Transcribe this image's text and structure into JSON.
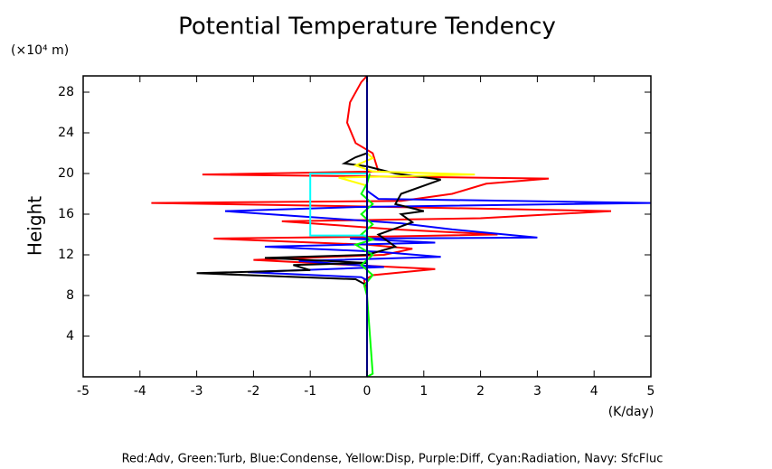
{
  "chart_data": {
    "type": "profile",
    "title": "Potential Temperature Tendency",
    "y_unit": "(×10⁴ m)",
    "ylabel": "Height",
    "xlabel": "(K/day)",
    "legend_text": "Red:Adv, Green:Turb, Blue:Condense, Yellow:Disp, Purple:Diff, Cyan:Radiation, Navy: SfcFluc",
    "xlim": [
      -5,
      5
    ],
    "xticks": [
      -5,
      -4,
      -3,
      -2,
      -1,
      0,
      1,
      2,
      3,
      4,
      5
    ],
    "ylim": [
      0,
      29.6
    ],
    "yticks": [
      4,
      8,
      12,
      16,
      20,
      24,
      28
    ],
    "series": [
      {
        "color": "#ff0000",
        "values": [
          0,
          0,
          -0.05,
          0.1,
          1.2,
          0.1,
          -2,
          0.3,
          0.8,
          0,
          -2.7,
          0.3,
          2.3,
          0.5,
          -1.5,
          2,
          4.3,
          0.5,
          -3.8,
          0.6,
          1.5,
          2.1,
          3.2,
          0.3,
          -2.9,
          0.2,
          0.1,
          -0.2,
          -0.35,
          -0.3,
          -0.1,
          0
        ],
        "heights": [
          0,
          8,
          9.5,
          10,
          10.6,
          10.9,
          11.5,
          12,
          12.6,
          13,
          13.6,
          13.8,
          14,
          14.5,
          15.3,
          15.6,
          16.3,
          16.7,
          17.1,
          17.3,
          18,
          19,
          19.5,
          19.7,
          19.9,
          20.2,
          22,
          23,
          25,
          27,
          29,
          29.6
        ]
      },
      {
        "color": "#0000ff",
        "values": [
          0,
          0,
          -0.1,
          -2.1,
          0.3,
          -1.2,
          1.3,
          0.2,
          -1.8,
          1.2,
          -0.3,
          3,
          1.5,
          0.6,
          -2.5,
          -0.2,
          5,
          0.2,
          0,
          0,
          0
        ],
        "heights": [
          0,
          9.5,
          9.8,
          10.3,
          10.8,
          11.4,
          11.8,
          12.3,
          12.8,
          13.2,
          13.6,
          13.7,
          14.5,
          15.1,
          16.3,
          16.7,
          17.1,
          17.5,
          18.3,
          19,
          29.6
        ]
      },
      {
        "color": "#000000",
        "values": [
          0,
          0,
          -0.2,
          -3,
          -1,
          -1.3,
          0,
          -1.8,
          0,
          0.5,
          0.2,
          0.5,
          0.8,
          0.6,
          1,
          0.5,
          0.6,
          1.3,
          0.5,
          0,
          -0.4,
          -0.2,
          0,
          0
        ],
        "heights": [
          0,
          9,
          9.6,
          10.2,
          10.5,
          11,
          11.2,
          11.7,
          12,
          12.8,
          14,
          14.6,
          15.2,
          16,
          16.3,
          17,
          18,
          19.4,
          20,
          20.7,
          21,
          21.6,
          22,
          29.6
        ]
      },
      {
        "color": "#ffff00",
        "values": [
          0,
          -0.5,
          1.9,
          0.1,
          -0.2,
          0.1,
          0
        ],
        "heights": [
          18.8,
          19.6,
          19.9,
          20.2,
          20.8,
          21.5,
          22
        ]
      },
      {
        "color": "#00ff00",
        "values": [
          0,
          0.1,
          0,
          -0.05,
          0.1,
          -0.1,
          0.1,
          -0.2,
          0.1,
          -0.1,
          0.1,
          -0.1,
          0.1,
          -0.1,
          0,
          0.05
        ],
        "heights": [
          0,
          0.3,
          8,
          9,
          10,
          11,
          12,
          13,
          13.5,
          14,
          15,
          16,
          17,
          18,
          19,
          20
        ]
      },
      {
        "color": "#00ffff",
        "values": [
          0,
          -1,
          -1,
          0
        ],
        "heights": [
          13.9,
          13.9,
          20,
          20
        ]
      },
      {
        "color": "#000080",
        "values": [
          0,
          0
        ],
        "heights": [
          0,
          29.6
        ]
      }
    ]
  }
}
